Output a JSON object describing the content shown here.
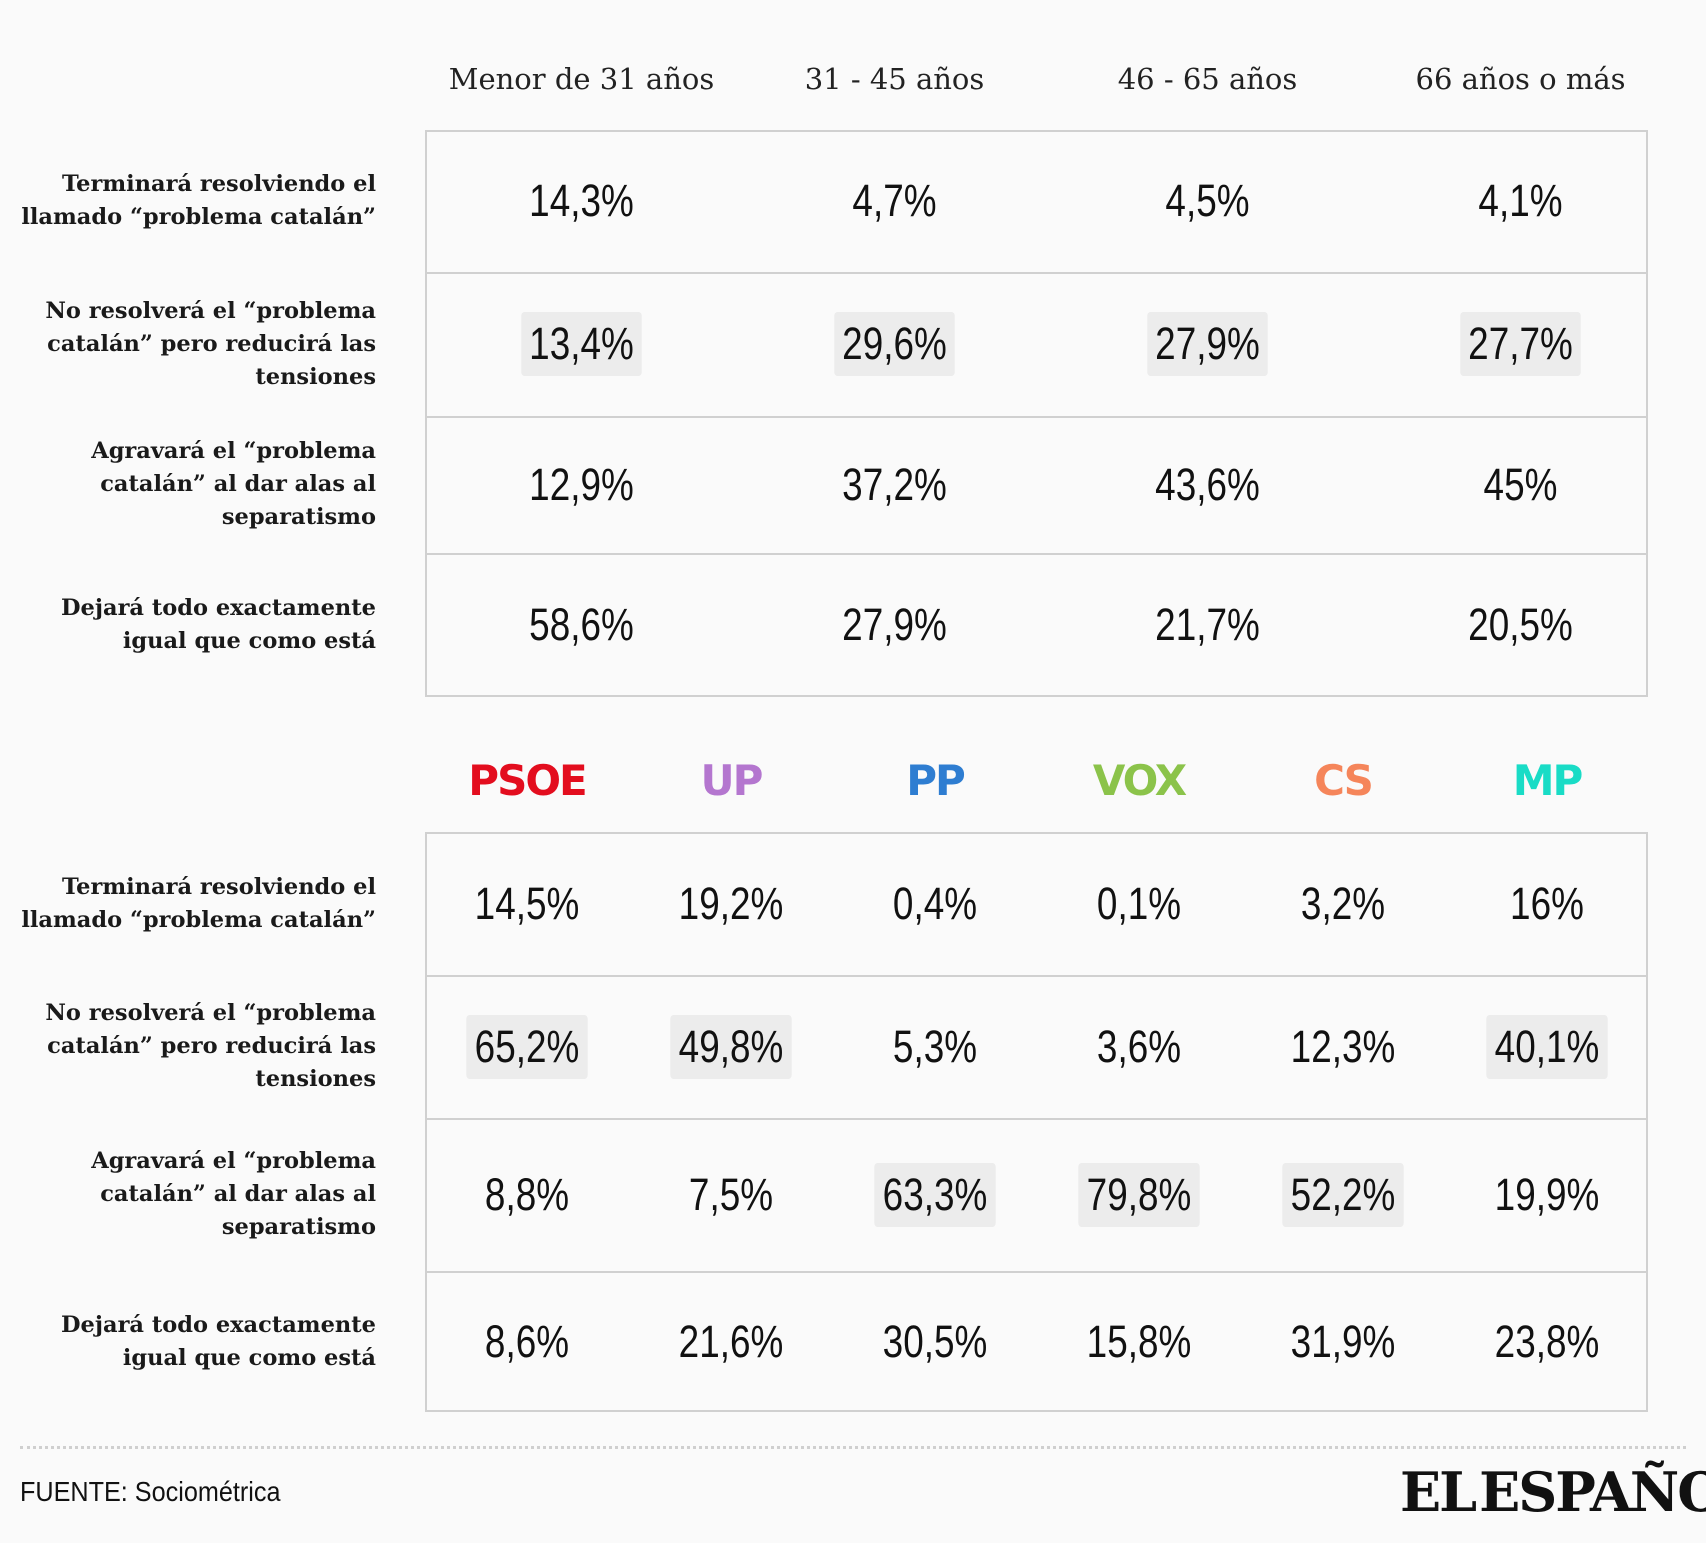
{
  "chart_data": [
    {
      "type": "table",
      "columns": [
        "Menor de 31 años",
        "31 - 45 años",
        "46 - 65 años",
        "66 años o más"
      ],
      "rows": [
        {
          "label": "Terminará resolviendo el llamado “problema catalán”",
          "values": [
            "14,3%",
            "4,7%",
            "4,5%",
            "4,1%"
          ],
          "highlight": [
            false,
            false,
            false,
            false
          ]
        },
        {
          "label": "No resolverá el “problema catalán” pero reducirá las tensiones",
          "values": [
            "13,4%",
            "29,6%",
            "27,9%",
            "27,7%"
          ],
          "highlight": [
            true,
            true,
            true,
            true
          ]
        },
        {
          "label": "Agravará el “problema catalán” al dar alas al separatismo",
          "values": [
            "12,9%",
            "37,2%",
            "43,6%",
            "45%"
          ],
          "highlight": [
            false,
            false,
            false,
            false
          ]
        },
        {
          "label": "Dejará todo exactamente igual que como está",
          "values": [
            "58,6%",
            "27,9%",
            "21,7%",
            "20,5%"
          ],
          "highlight": [
            false,
            false,
            false,
            false
          ]
        }
      ]
    },
    {
      "type": "table",
      "columns": [
        {
          "name": "PSOE",
          "color": "#e30d1e"
        },
        {
          "name": "UP",
          "color": "#b476cf"
        },
        {
          "name": "PP",
          "color": "#2e7dd1"
        },
        {
          "name": "VOX",
          "color": "#8bc34a"
        },
        {
          "name": "CS",
          "color": "#f5855a"
        },
        {
          "name": "MP",
          "color": "#19dcc6"
        }
      ],
      "rows": [
        {
          "label": "Terminará resolviendo el llamado “problema catalán”",
          "values": [
            "14,5%",
            "19,2%",
            "0,4%",
            "0,1%",
            "3,2%",
            "16%"
          ],
          "highlight": [
            false,
            false,
            false,
            false,
            false,
            false
          ]
        },
        {
          "label": "No resolverá el “problema catalán” pero reducirá las tensiones",
          "values": [
            "65,2%",
            "49,8%",
            "5,3%",
            "3,6%",
            "12,3%",
            "40,1%"
          ],
          "highlight": [
            true,
            true,
            false,
            false,
            false,
            true
          ]
        },
        {
          "label": "Agravará el “problema catalán” al dar alas al separatismo",
          "values": [
            "8,8%",
            "7,5%",
            "63,3%",
            "79,8%",
            "52,2%",
            "19,9%"
          ],
          "highlight": [
            false,
            false,
            true,
            true,
            true,
            false
          ]
        },
        {
          "label": "Dejará todo exactamente igual que como está",
          "values": [
            "8,6%",
            "21,6%",
            "30,5%",
            "15,8%",
            "31,9%",
            "23,8%"
          ],
          "highlight": [
            false,
            false,
            false,
            false,
            false,
            false
          ]
        }
      ]
    }
  ],
  "footer": {
    "source": "FUENTE: Sociométrica",
    "logo_text_left": "EL",
    "logo_text_right": "ESPAÑOL"
  }
}
